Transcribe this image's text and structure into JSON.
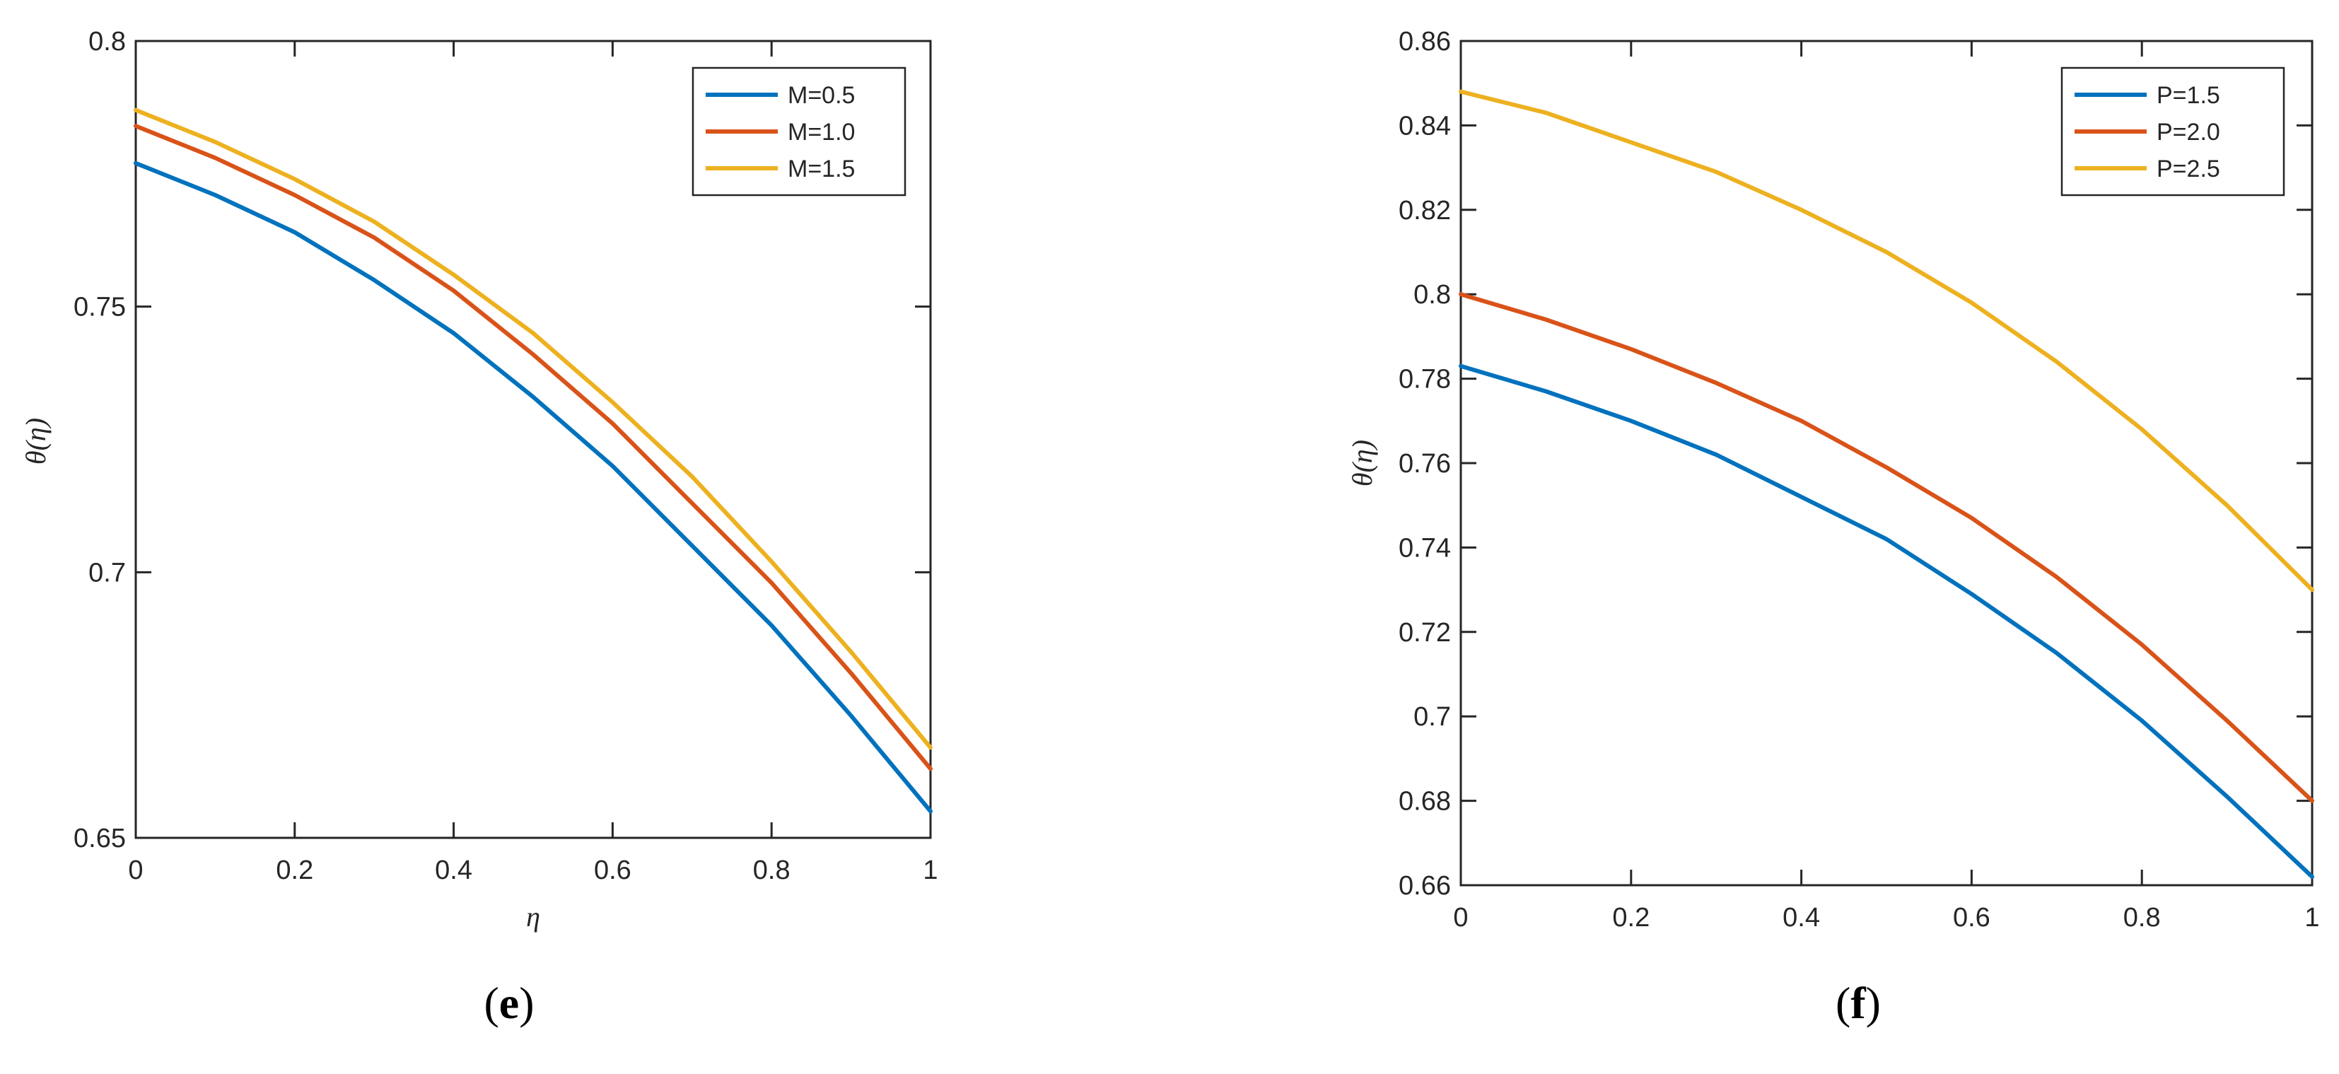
{
  "chart_data": [
    {
      "type": "line",
      "panel_label": "e",
      "xlabel": "η",
      "ylabel": "θ(η)",
      "xlim": [
        0,
        1
      ],
      "ylim": [
        0.65,
        0.8
      ],
      "xticks": [
        0,
        0.2,
        0.4,
        0.6,
        0.8,
        1
      ],
      "xtick_labels": [
        "0",
        "0.2",
        "0.4",
        "0.6",
        "0.8",
        "1"
      ],
      "yticks": [
        0.65,
        0.7,
        0.75,
        0.8
      ],
      "ytick_labels": [
        "0.65",
        "0.7",
        "0.75",
        "0.8"
      ],
      "grid": false,
      "legend_position": "top-right",
      "x": [
        0,
        0.1,
        0.2,
        0.3,
        0.4,
        0.5,
        0.6,
        0.7,
        0.8,
        0.9,
        1.0
      ],
      "series": [
        {
          "name": "M=0.5",
          "color": "#0072BD",
          "values": [
            0.777,
            0.771,
            0.764,
            0.755,
            0.745,
            0.733,
            0.72,
            0.705,
            0.69,
            0.673,
            0.655
          ]
        },
        {
          "name": "M=1.0",
          "color": "#D95319",
          "values": [
            0.784,
            0.778,
            0.771,
            0.763,
            0.753,
            0.741,
            0.728,
            0.713,
            0.698,
            0.681,
            0.663
          ]
        },
        {
          "name": "M=1.5",
          "color": "#EDB120",
          "values": [
            0.787,
            0.781,
            0.774,
            0.766,
            0.756,
            0.745,
            0.732,
            0.718,
            0.702,
            0.685,
            0.667
          ]
        }
      ]
    },
    {
      "type": "line",
      "panel_label": "f",
      "xlabel": "",
      "ylabel": "θ(η)",
      "xlim": [
        0,
        1
      ],
      "ylim": [
        0.66,
        0.86
      ],
      "xticks": [
        0,
        0.2,
        0.4,
        0.6,
        0.8,
        1
      ],
      "xtick_labels": [
        "0",
        "0.2",
        "0.4",
        "0.6",
        "0.8",
        "1"
      ],
      "yticks": [
        0.66,
        0.68,
        0.7,
        0.72,
        0.74,
        0.76,
        0.78,
        0.8,
        0.82,
        0.84,
        0.86
      ],
      "ytick_labels": [
        "0.66",
        "0.68",
        "0.7",
        "0.72",
        "0.74",
        "0.76",
        "0.78",
        "0.8",
        "0.82",
        "0.84",
        "0.86"
      ],
      "grid": false,
      "legend_position": "top-right",
      "x": [
        0,
        0.1,
        0.2,
        0.3,
        0.4,
        0.5,
        0.6,
        0.7,
        0.8,
        0.9,
        1.0
      ],
      "series": [
        {
          "name": "P=1.5",
          "color": "#0072BD",
          "values": [
            0.783,
            0.777,
            0.77,
            0.762,
            0.752,
            0.742,
            0.729,
            0.715,
            0.699,
            0.681,
            0.662
          ]
        },
        {
          "name": "P=2.0",
          "color": "#D95319",
          "values": [
            0.8,
            0.794,
            0.787,
            0.779,
            0.77,
            0.759,
            0.747,
            0.733,
            0.717,
            0.699,
            0.68
          ]
        },
        {
          "name": "P=2.5",
          "color": "#EDB120",
          "values": [
            0.848,
            0.843,
            0.836,
            0.829,
            0.82,
            0.81,
            0.798,
            0.784,
            0.768,
            0.75,
            0.73
          ]
        }
      ]
    }
  ]
}
